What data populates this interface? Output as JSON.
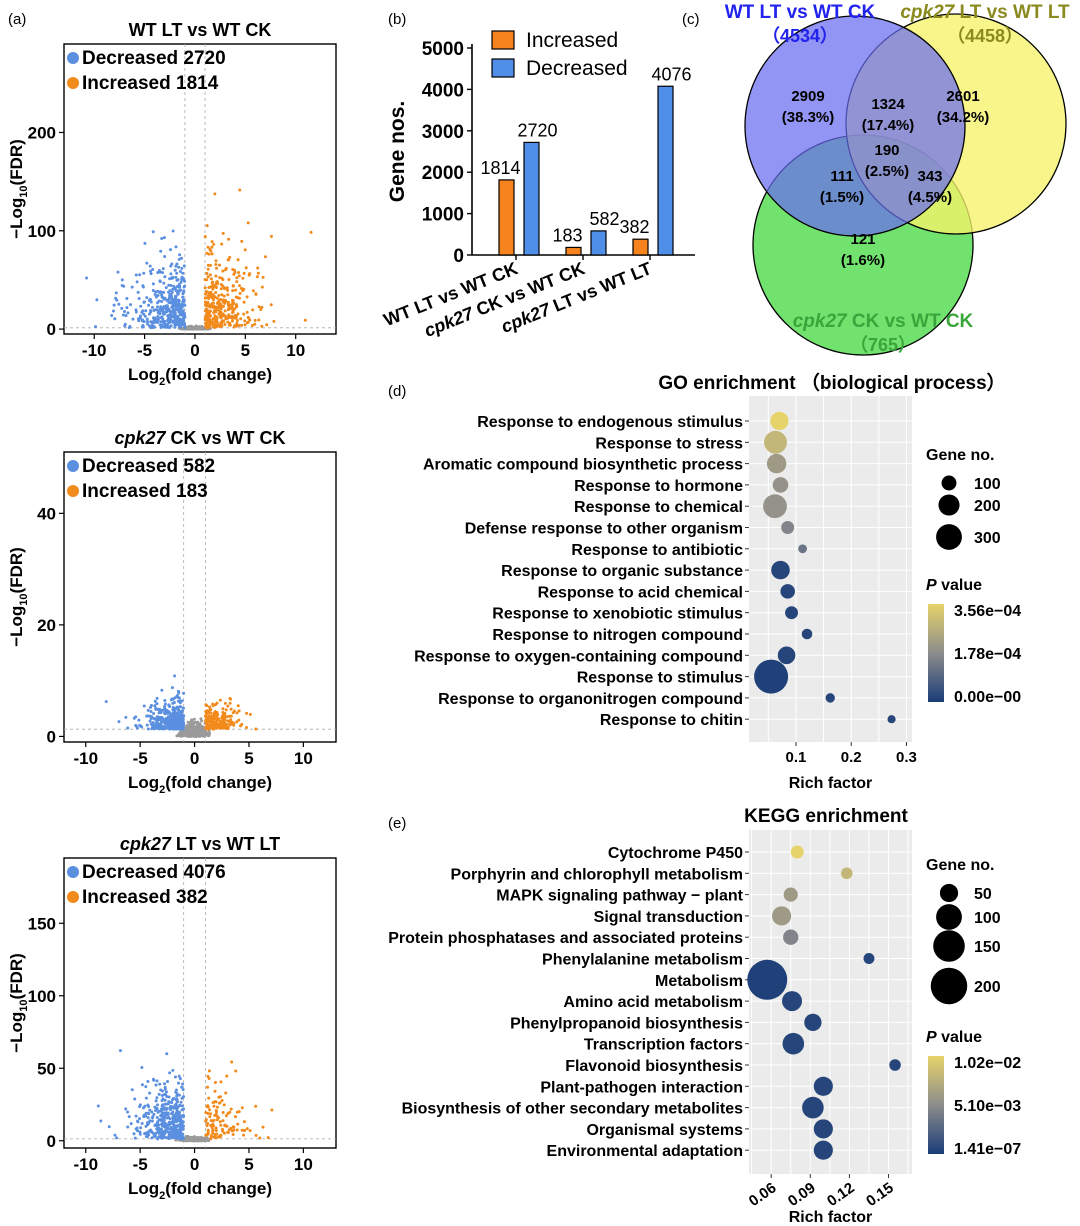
{
  "panels": {
    "a": "(a)",
    "b": "(b)",
    "c": "(c)",
    "d": "(d)",
    "e": "(e)"
  },
  "colors": {
    "decreased": "#5b8fe0",
    "increased": "#f28a1c",
    "notsig": "#9a9a9a",
    "bar_inc": "#f7831f",
    "bar_dec": "#4f8fe8",
    "venn_blue": "#6a6cf0",
    "venn_yellow": "#f6f46a",
    "venn_green": "#59dd55",
    "title_blue": "#2222ee",
    "title_olive": "#8a8a1e",
    "title_green": "#3aa53a",
    "pval_high": "#e6d36a",
    "pval_mid": "#8c8c8c",
    "pval_low": "#1b3d78"
  },
  "chart_data": [
    {
      "type": "scatter",
      "id": "volcano1",
      "title": "WT LT vs WT CK",
      "xlabel": "Log2(fold change)",
      "ylabel": "−Log10(FDR)",
      "xlim": [
        -13,
        14
      ],
      "ylim": [
        -5,
        290
      ],
      "xticks": [
        -10,
        -5,
        0,
        5,
        10
      ],
      "yticks": [
        0,
        100,
        200
      ],
      "legend": [
        {
          "label": "Decreased",
          "count": "2720"
        },
        {
          "label": "Increased",
          "count": "1814"
        }
      ]
    },
    {
      "type": "scatter",
      "id": "volcano2",
      "title_italic": "cpk27",
      "title_rest": " CK vs WT CK",
      "xlabel": "Log2(fold change)",
      "ylabel": "−Log10(FDR)",
      "xlim": [
        -12,
        13
      ],
      "ylim": [
        -1,
        51
      ],
      "xticks": [
        -10,
        -5,
        0,
        5,
        10
      ],
      "yticks": [
        0,
        20,
        40
      ],
      "legend": [
        {
          "label": "Decreased",
          "count": "582"
        },
        {
          "label": "Increased",
          "count": "183"
        }
      ]
    },
    {
      "type": "scatter",
      "id": "volcano3",
      "title_italic": "cpk27",
      "title_rest": " LT vs WT LT",
      "xlabel": "Log2(fold change)",
      "ylabel": "−Log10(FDR)",
      "xlim": [
        -12,
        13
      ],
      "ylim": [
        -5,
        195
      ],
      "xticks": [
        -10,
        -5,
        0,
        5,
        10
      ],
      "yticks": [
        0,
        50,
        100,
        150
      ],
      "legend": [
        {
          "label": "Decreased",
          "count": "4076"
        },
        {
          "label": "Increased",
          "count": "382"
        }
      ]
    },
    {
      "type": "bar",
      "id": "barchart",
      "ylabel": "Gene nos.",
      "ylim": [
        0,
        5000
      ],
      "yticks": [
        0,
        1000,
        2000,
        3000,
        4000,
        5000
      ],
      "categories": [
        {
          "italic": "",
          "rest": "WT LT vs WT CK"
        },
        {
          "italic": "cpk27",
          "rest": " CK vs WT CK"
        },
        {
          "italic": "cpk27",
          "rest": " LT vs WT LT"
        }
      ],
      "series": [
        {
          "name": "Increased",
          "values": [
            1814,
            183,
            382
          ]
        },
        {
          "name": "Decreased",
          "values": [
            2720,
            582,
            4076
          ]
        }
      ]
    },
    {
      "type": "venn",
      "id": "venn",
      "sets": [
        {
          "italic": "",
          "rest": "WT LT vs WT CK",
          "total": "（4534）"
        },
        {
          "italic": "cpk27",
          "rest": " LT vs WT LT",
          "total": "（4458）"
        },
        {
          "italic": "cpk27",
          "rest": " CK vs WT CK",
          "total": "（765）"
        }
      ],
      "regions": [
        {
          "id": "A",
          "count": "2909",
          "pct": "(38.3%)"
        },
        {
          "id": "AB",
          "count": "1324",
          "pct": "(17.4%)"
        },
        {
          "id": "B",
          "count": "2601",
          "pct": "(34.2%)"
        },
        {
          "id": "ABC",
          "count": "190",
          "pct": "(2.5%)"
        },
        {
          "id": "AC",
          "count": "111",
          "pct": "(1.5%)"
        },
        {
          "id": "BC",
          "count": "343",
          "pct": "(4.5%)"
        },
        {
          "id": "C",
          "count": "121",
          "pct": "(1.6%)"
        }
      ]
    },
    {
      "type": "scatter",
      "id": "go",
      "title": "GO enrichment （biological process）",
      "xlabel": "Rich factor",
      "xlim": [
        0.015,
        0.31
      ],
      "xticks": [
        0.1,
        0.2,
        0.3
      ],
      "xticklabels": [
        "0.1",
        "0.2",
        "0.3"
      ],
      "size_legend_title": "Gene no.",
      "size_legend": [
        100,
        200,
        300
      ],
      "color_legend_title_italic": "P",
      "color_legend_title_rest": " value",
      "color_legend": [
        "3.56e−04",
        "1.78e−04",
        "0.00e−00"
      ],
      "points": [
        {
          "term": "Response to endogenous stimulus",
          "x": 0.07,
          "size": 150,
          "p": 1.0
        },
        {
          "term": "Response to stress",
          "x": 0.063,
          "size": 235,
          "p": 0.8
        },
        {
          "term": "Aromatic compound biosynthetic process",
          "x": 0.065,
          "size": 170,
          "p": 0.6
        },
        {
          "term": "Response to hormone",
          "x": 0.072,
          "size": 110,
          "p": 0.55
        },
        {
          "term": "Response to chemical",
          "x": 0.062,
          "size": 255,
          "p": 0.55
        },
        {
          "term": "Defense response to other organism",
          "x": 0.085,
          "size": 75,
          "p": 0.45
        },
        {
          "term": "Response to antibiotic",
          "x": 0.112,
          "size": 35,
          "p": 0.35
        },
        {
          "term": "Response to organic substance",
          "x": 0.072,
          "size": 155,
          "p": 0.05
        },
        {
          "term": "Response to acid chemical",
          "x": 0.085,
          "size": 95,
          "p": 0.05
        },
        {
          "term": "Response to xenobiotic stimulus",
          "x": 0.092,
          "size": 75,
          "p": 0.05
        },
        {
          "term": "Response to nitrogen compound",
          "x": 0.12,
          "size": 50,
          "p": 0.05
        },
        {
          "term": "Response to oxygen-containing compound",
          "x": 0.083,
          "size": 140,
          "p": 0.05
        },
        {
          "term": "Response to stimulus",
          "x": 0.055,
          "size": 520,
          "p": 0.02
        },
        {
          "term": "Response to organonitrogen compound",
          "x": 0.162,
          "size": 40,
          "p": 0.05
        },
        {
          "term": "Response to chitin",
          "x": 0.273,
          "size": 30,
          "p": 0.05
        }
      ]
    },
    {
      "type": "scatter",
      "id": "kegg",
      "title": "KEGG enrichment",
      "xlabel": "Rich factor",
      "xlim": [
        0.043,
        0.168
      ],
      "xticks": [
        0.06,
        0.09,
        0.12,
        0.15
      ],
      "xticklabels": [
        "0.06",
        "0.09",
        "0.12",
        "0.15"
      ],
      "size_legend_title": "Gene no.",
      "size_legend": [
        50,
        100,
        150,
        200
      ],
      "color_legend_title_italic": "P",
      "color_legend_title_rest": " value",
      "color_legend": [
        "1.02e−02",
        "5.10e−03",
        "1.41e−07"
      ],
      "points": [
        {
          "term": "Cytochrome P450",
          "x": 0.08,
          "size": 25,
          "p": 1.0
        },
        {
          "term": "Porphyrin and chlorophyll metabolism",
          "x": 0.118,
          "size": 20,
          "p": 0.8
        },
        {
          "term": "MAPK signaling pathway − plant",
          "x": 0.075,
          "size": 30,
          "p": 0.6
        },
        {
          "term": "Signal transduction",
          "x": 0.068,
          "size": 55,
          "p": 0.6
        },
        {
          "term": "Protein phosphatases and associated proteins",
          "x": 0.075,
          "size": 35,
          "p": 0.45
        },
        {
          "term": "Phenylalanine metabolism",
          "x": 0.135,
          "size": 18,
          "p": 0.05
        },
        {
          "term": "Metabolism",
          "x": 0.057,
          "size": 240,
          "p": 0.02
        },
        {
          "term": "Amino acid metabolism",
          "x": 0.076,
          "size": 60,
          "p": 0.05
        },
        {
          "term": "Phenylpropanoid biosynthesis",
          "x": 0.092,
          "size": 45,
          "p": 0.05
        },
        {
          "term": "Transcription factors",
          "x": 0.077,
          "size": 70,
          "p": 0.05
        },
        {
          "term": "Flavonoid biosynthesis",
          "x": 0.155,
          "size": 20,
          "p": 0.05
        },
        {
          "term": "Plant-pathogen interaction",
          "x": 0.1,
          "size": 55,
          "p": 0.05
        },
        {
          "term": "Biosynthesis of other secondary metabolites",
          "x": 0.092,
          "size": 70,
          "p": 0.05
        },
        {
          "term": "Organismal systems",
          "x": 0.1,
          "size": 55,
          "p": 0.05
        },
        {
          "term": "Environmental adaptation",
          "x": 0.1,
          "size": 55,
          "p": 0.05
        }
      ]
    }
  ]
}
